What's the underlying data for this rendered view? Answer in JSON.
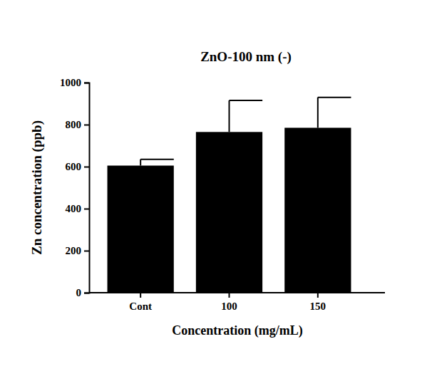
{
  "chart_data": {
    "type": "bar",
    "title": "ZnO-100 nm (-)",
    "x_label": "Concentration (mg/mL)",
    "y_label": "Zn concentration (ppb)",
    "categories": [
      "Cont",
      "100",
      "150"
    ],
    "values": [
      605,
      765,
      785
    ],
    "errors": [
      30,
      150,
      145
    ],
    "color": "#000000",
    "ylim": [
      0,
      1000
    ],
    "yticks": [
      0,
      200,
      400,
      600,
      800,
      1000
    ],
    "grid": false
  }
}
